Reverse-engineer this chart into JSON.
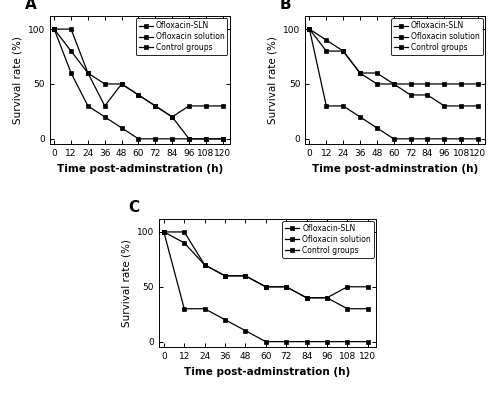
{
  "time": [
    0,
    12,
    24,
    36,
    48,
    60,
    72,
    84,
    96,
    108,
    120
  ],
  "A": {
    "SLN": [
      100,
      100,
      60,
      50,
      50,
      40,
      30,
      20,
      30,
      30,
      30
    ],
    "solution": [
      100,
      80,
      60,
      30,
      50,
      40,
      30,
      20,
      0,
      0,
      0
    ],
    "control": [
      100,
      60,
      30,
      20,
      10,
      0,
      0,
      0,
      0,
      0,
      0
    ]
  },
  "B": {
    "SLN": [
      100,
      80,
      80,
      60,
      50,
      50,
      50,
      50,
      50,
      50,
      50
    ],
    "solution": [
      100,
      90,
      80,
      60,
      60,
      50,
      40,
      40,
      30,
      30,
      30
    ],
    "control": [
      100,
      30,
      30,
      20,
      10,
      0,
      0,
      0,
      0,
      0,
      0
    ]
  },
  "C": {
    "SLN": [
      100,
      100,
      70,
      60,
      60,
      50,
      50,
      40,
      40,
      50,
      50
    ],
    "solution": [
      100,
      90,
      70,
      60,
      60,
      50,
      50,
      40,
      40,
      30,
      30
    ],
    "control": [
      100,
      30,
      30,
      20,
      10,
      0,
      0,
      0,
      0,
      0,
      0
    ]
  },
  "labels": [
    "Ofloxacin-SLN",
    "Ofloxacin solution",
    "Control groups"
  ],
  "xlabel": "Time post-adminstration (h)",
  "ylabel": "Survival rate (%)",
  "xticks": [
    0,
    12,
    24,
    36,
    48,
    60,
    72,
    84,
    96,
    108,
    120
  ],
  "yticks": [
    0,
    50,
    100
  ],
  "colors": [
    "#000000",
    "#000000",
    "#000000"
  ],
  "linestyles": [
    "-",
    "-",
    "-"
  ],
  "markers": [
    "s",
    "s",
    "s"
  ],
  "markersize": 3.5,
  "linewidth": 0.9,
  "panel_labels": [
    "A",
    "B",
    "C"
  ],
  "panel_label_fontsize": 11,
  "xlabel_fontsize": 7.5,
  "ylabel_fontsize": 7.5,
  "tick_fontsize": 6.5,
  "legend_fontsize": 5.5
}
